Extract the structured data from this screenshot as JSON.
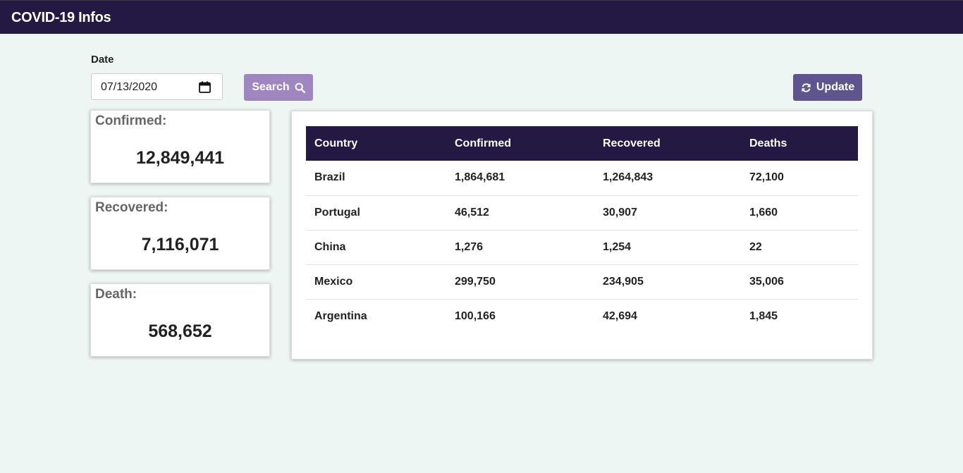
{
  "navbar": {
    "brand": "COVID-19 Infos"
  },
  "filter": {
    "date_label": "Date",
    "date_value": "07/13/2020",
    "search_label": "Search",
    "update_label": "Update"
  },
  "summary": {
    "confirmed": {
      "title": "Confirmed:",
      "value": "12,849,441"
    },
    "recovered": {
      "title": "Recovered:",
      "value": "7,116,071"
    },
    "death": {
      "title": "Death:",
      "value": "568,652"
    }
  },
  "table": {
    "headers": [
      "Country",
      "Confirmed",
      "Recovered",
      "Deaths"
    ],
    "rows": [
      [
        "Brazil",
        "1,864,681",
        "1,264,843",
        "72,100"
      ],
      [
        "Portugal",
        "46,512",
        "30,907",
        "1,660"
      ],
      [
        "China",
        "1,276",
        "1,254",
        "22"
      ],
      [
        "Mexico",
        "299,750",
        "234,905",
        "35,006"
      ],
      [
        "Argentina",
        "100,166",
        "42,694",
        "1,845"
      ]
    ]
  },
  "colors": {
    "navbar": "#231942",
    "search_button": "#9f86c0",
    "update_button": "#5e548e",
    "background": "#eef6f4"
  },
  "icons": {
    "search": "search-icon",
    "update": "refresh-icon",
    "date": "calendar-icon"
  }
}
